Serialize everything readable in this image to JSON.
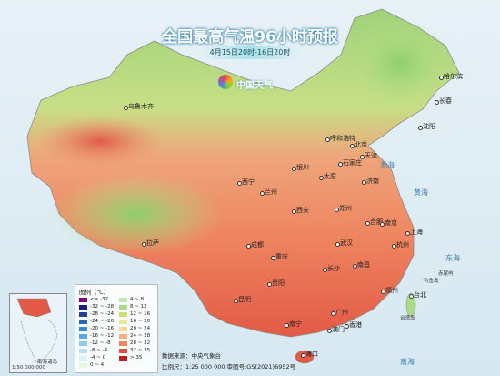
{
  "header": {
    "title": "全国最高气温96小时预报",
    "subtitle": "4月15日20时-16日20时",
    "logo": "中国天气"
  },
  "legend": {
    "title": "图例（℃）",
    "items": [
      {
        "label": "<= -32",
        "color": "#800080"
      },
      {
        "label": "-32 ~ -28",
        "color": "#1a1a8a"
      },
      {
        "label": "-28 ~ -24",
        "color": "#1f3fa0"
      },
      {
        "label": "-24 ~ -20",
        "color": "#2a66c0"
      },
      {
        "label": "-20 ~ -16",
        "color": "#3a8ad8"
      },
      {
        "label": "-16 ~ -12",
        "color": "#5aaae8"
      },
      {
        "label": "-12 ~ -8",
        "color": "#8ccbf0"
      },
      {
        "label": "-8 ~ -4",
        "color": "#b8e0f5"
      },
      {
        "label": "-4 ~ 0",
        "color": "#d8f0f8"
      },
      {
        "label": "0 ~ 4",
        "color": "#e6f6d8"
      },
      {
        "label": "4 ~ 8",
        "color": "#c8eab0"
      },
      {
        "label": "8 ~ 12",
        "color": "#a8dc8a"
      },
      {
        "label": "12 ~ 16",
        "color": "#c8e070"
      },
      {
        "label": "16 ~ 20",
        "color": "#e8e890"
      },
      {
        "label": "20 ~ 24",
        "color": "#f6d890"
      },
      {
        "label": "24 ~ 28",
        "color": "#f4b080"
      },
      {
        "label": "28 ~ 32",
        "color": "#ee8460"
      },
      {
        "label": "32 ~ 35",
        "color": "#e05040"
      },
      {
        "label": "> 35",
        "color": "#c02020"
      }
    ]
  },
  "cities": [
    "乌鲁木齐",
    "哈尔滨",
    "长春",
    "沈阳",
    "呼和浩特",
    "北京",
    "天津",
    "石家庄",
    "银川",
    "太原",
    "济南",
    "西宁",
    "兰州",
    "郑州",
    "西安",
    "合肥",
    "南京",
    "上海",
    "拉萨",
    "成都",
    "武汉",
    "杭州",
    "重庆",
    "长沙",
    "南昌",
    "贵阳",
    "福州",
    "昆明",
    "台北",
    "南宁",
    "广州",
    "香港",
    "澳门",
    "海口"
  ],
  "seas": [
    "渤海",
    "黄海",
    "东海",
    "南海"
  ],
  "islands": [
    "钓鱼岛",
    "赤尾屿",
    "台湾岛"
  ],
  "inset": {
    "label": "南海诸岛",
    "scale": "1:50 000 000"
  },
  "footer": {
    "source": "数据来源：中央气象台",
    "scale": "比例尺：1:25 000 000   审图号:GS(2021)6952号"
  }
}
